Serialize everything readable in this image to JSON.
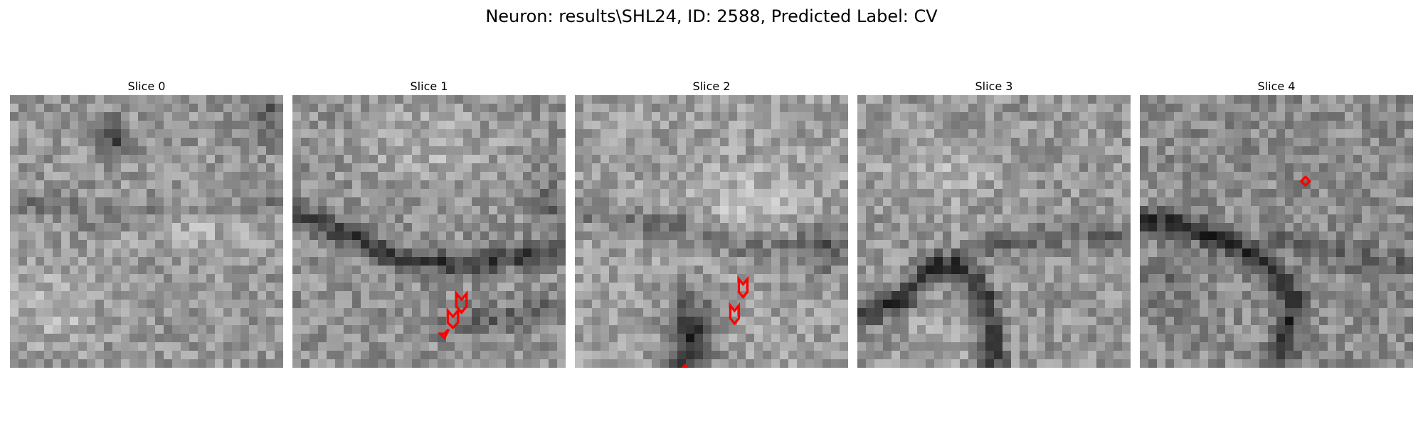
{
  "figure": {
    "title": "Neuron: results\\SHL24, ID: 2588, Predicted Label: CV"
  },
  "colors": {
    "contour": "#ff0000",
    "background": "#ffffff"
  },
  "slices": [
    {
      "title": "Slice 0"
    },
    {
      "title": "Slice 1"
    },
    {
      "title": "Slice 2"
    },
    {
      "title": "Slice 3"
    },
    {
      "title": "Slice 4"
    }
  ]
}
